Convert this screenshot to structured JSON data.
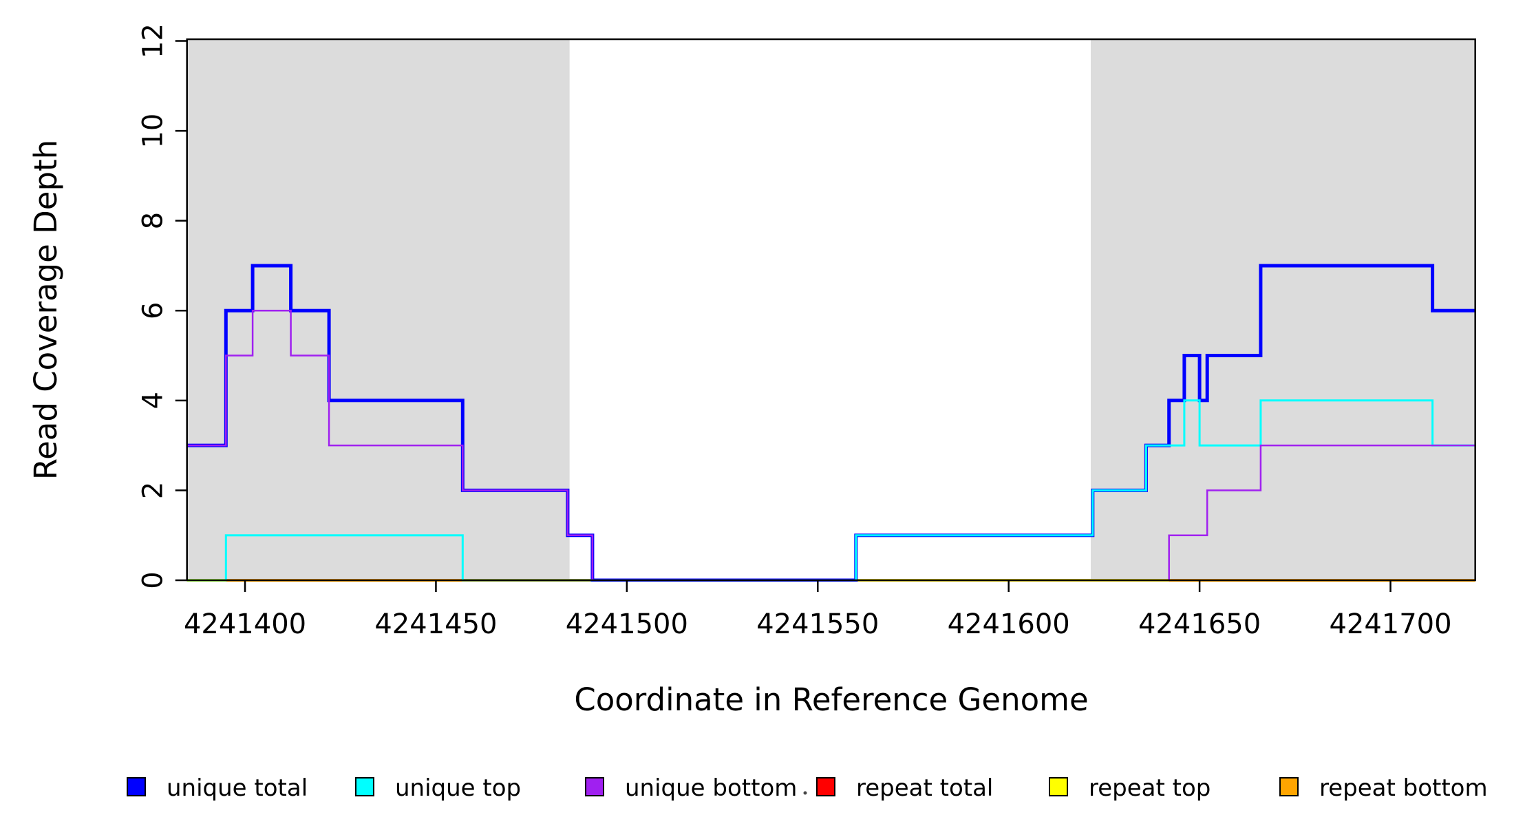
{
  "chart_data": {
    "type": "line",
    "subtype": "step-coverage-plot",
    "title": "",
    "xlabel": "Coordinate in Reference Genome",
    "ylabel": "Read Coverage Depth",
    "xlim": [
      4241384.8,
      4241722.2
    ],
    "ylim": [
      0,
      12
    ],
    "xticks": [
      4241400,
      4241450,
      4241500,
      4241550,
      4241600,
      4241650,
      4241700
    ],
    "yticks": [
      0,
      2,
      4,
      6,
      8,
      10,
      12
    ],
    "grid": false,
    "background_color": "#ffffff",
    "shaded_regions": [
      {
        "name": "repeat-region-left",
        "x0": 4241384.8,
        "x1": 4241485.0,
        "color": "#dcdcdc"
      },
      {
        "name": "repeat-region-right",
        "x0": 4241621.5,
        "x1": 4241722.2,
        "color": "#dcdcdc"
      }
    ],
    "series": [
      {
        "name": "repeat total",
        "color": "#ff0000",
        "lwd": 4,
        "segments": [
          {
            "steps": [
              [
                4241384.8,
                0
              ]
            ],
            "xend": 4241722.2
          }
        ]
      },
      {
        "name": "repeat top",
        "color": "#ffff00",
        "lwd": 4,
        "segments": [
          {
            "steps": [
              [
                4241384.8,
                0
              ]
            ],
            "xend": 4241722.2
          }
        ]
      },
      {
        "name": "repeat bottom",
        "color": "#ffa500",
        "lwd": 4,
        "segments": [
          {
            "steps": [
              [
                4241395,
                0
              ]
            ],
            "xend": 4241491
          },
          {
            "steps": [
              [
                4241642,
                0
              ]
            ],
            "xend": 4241722.2
          }
        ]
      },
      {
        "name": "unique total",
        "color": "#0000ff",
        "lwd": 5,
        "segments": [
          {
            "steps": [
              [
                4241384.8,
                3
              ],
              [
                4241395,
                6
              ],
              [
                4241402,
                7
              ],
              [
                4241412,
                6
              ],
              [
                4241422,
                4
              ],
              [
                4241457,
                2
              ],
              [
                4241484.5,
                1
              ],
              [
                4241491,
                0
              ],
              [
                4241560,
                1
              ],
              [
                4241622,
                2
              ],
              [
                4241636,
                3
              ],
              [
                4241642,
                4
              ],
              [
                4241646,
                5
              ],
              [
                4241650,
                4
              ],
              [
                4241652,
                5
              ],
              [
                4241666,
                7
              ],
              [
                4241711,
                6
              ]
            ],
            "xend": 4241722.2
          }
        ]
      },
      {
        "name": "unique top",
        "color": "#00ffff",
        "lwd": 3,
        "segments": [
          {
            "steps": [
              [
                4241384.8,
                0
              ],
              [
                4241395,
                1
              ],
              [
                4241457,
                0
              ],
              [
                4241560,
                1
              ],
              [
                4241622,
                2
              ],
              [
                4241636,
                3
              ],
              [
                4241646,
                4
              ],
              [
                4241650,
                3
              ],
              [
                4241666,
                4
              ],
              [
                4241711,
                3
              ]
            ],
            "xend": 4241722.2
          }
        ]
      },
      {
        "name": "unique bottom",
        "color": "#a020f0",
        "lwd": 2.5,
        "segments": [
          {
            "steps": [
              [
                4241384.8,
                3
              ],
              [
                4241395,
                5
              ],
              [
                4241402,
                6
              ],
              [
                4241412,
                5
              ],
              [
                4241422,
                3
              ],
              [
                4241457,
                2
              ],
              [
                4241484.5,
                1
              ],
              [
                4241491,
                0
              ],
              [
                4241642,
                1
              ],
              [
                4241652,
                2
              ],
              [
                4241666,
                3
              ]
            ],
            "xend": 4241722.2
          }
        ]
      }
    ],
    "legend": [
      {
        "label": "unique total",
        "color": "#0000ff"
      },
      {
        "label": "unique top",
        "color": "#00ffff"
      },
      {
        "label": "unique bottom",
        "color": "#a020f0"
      },
      {
        "label": "repeat total",
        "color": "#ff0000"
      },
      {
        "label": "repeat top",
        "color": "#ffff00"
      },
      {
        "label": "repeat bottom",
        "color": "#ffa500"
      }
    ],
    "legend_position": "bottom",
    "axis_color": "#000000"
  }
}
